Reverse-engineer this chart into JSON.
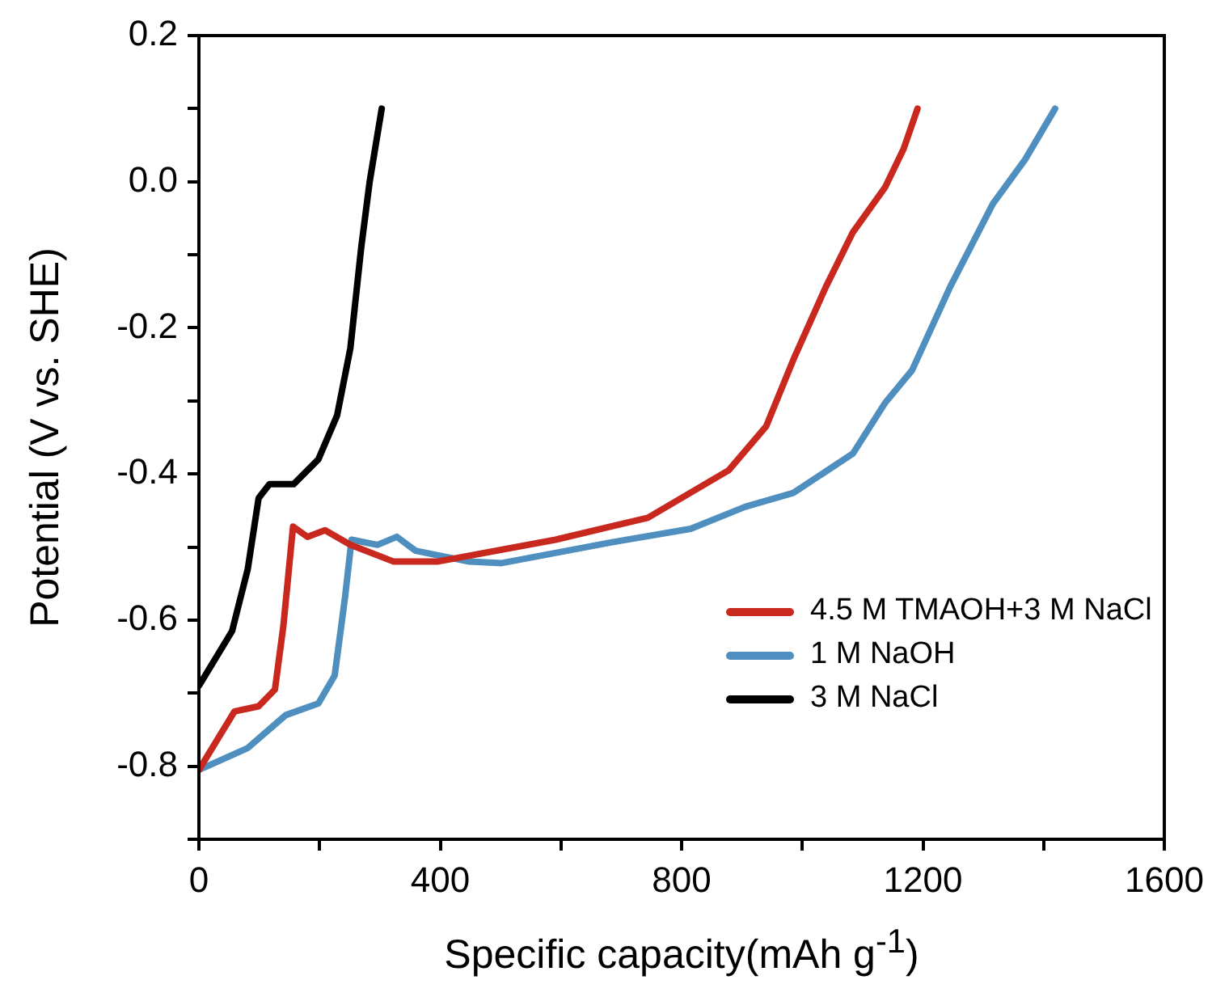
{
  "chart_data": {
    "type": "line",
    "xlabel": "Specific capacity(mAh g$^{-1}$)",
    "ylabel": "Potential (V vs. SHE)",
    "xlim": [
      0,
      1600
    ],
    "xticks": [
      0,
      {
        "value": 200,
        "label": null
      },
      400,
      {
        "value": 600,
        "label": null
      },
      800,
      {
        "value": 1000,
        "label": null
      },
      1200,
      {
        "value": 1400,
        "label": null
      },
      1600
    ],
    "ylim": [
      -0.9,
      0.2
    ],
    "yticks": [
      {
        "value": -0.9,
        "label": null
      },
      -0.8,
      {
        "value": -0.7,
        "label": null
      },
      -0.6,
      {
        "value": -0.5,
        "label": null
      },
      -0.4,
      {
        "value": -0.3,
        "label": null
      },
      -0.2,
      {
        "value": -0.1,
        "label": null
      },
      {
        "value": 0,
        "label": "0.0"
      },
      {
        "value": 0.1,
        "label": null
      },
      0.2
    ],
    "legend": "right",
    "grid": false,
    "marker": "none",
    "line_style": "solid",
    "series": [
      {
        "name": "4.5 M TMAOH+3 M NaCl",
        "color": "#c8281e",
        "x": [
          0,
          59,
          99,
          126,
          140,
          156,
          180,
          209,
          251,
          323,
          395,
          591,
          744,
          878,
          940,
          985,
          1039,
          1084,
          1137,
          1168,
          1191
        ],
        "values": [
          -0.805,
          -0.725,
          -0.718,
          -0.695,
          -0.608,
          -0.472,
          -0.486,
          -0.477,
          -0.497,
          -0.52,
          -0.52,
          -0.49,
          -0.46,
          -0.395,
          -0.335,
          -0.244,
          -0.144,
          -0.069,
          -0.008,
          0.045,
          0.1
        ]
      },
      {
        "name": "1 M NaOH",
        "color": "#4f8fbf",
        "x": [
          0,
          81,
          144,
          198,
          225,
          242,
          253,
          296,
          328,
          359,
          448,
          502,
          681,
          815,
          905,
          985,
          1084,
          1137,
          1182,
          1245,
          1316,
          1369,
          1419
        ],
        "values": [
          -0.805,
          -0.775,
          -0.73,
          -0.714,
          -0.676,
          -0.57,
          -0.49,
          -0.497,
          -0.486,
          -0.505,
          -0.52,
          -0.522,
          -0.494,
          -0.475,
          -0.445,
          -0.426,
          -0.372,
          -0.303,
          -0.258,
          -0.144,
          -0.03,
          0.03,
          0.1
        ]
      },
      {
        "name": "3 M NaCl",
        "color": "#000000",
        "x": [
          0,
          55,
          81,
          99,
          117,
          157,
          198,
          229,
          251,
          269,
          283,
          303
        ],
        "values": [
          -0.69,
          -0.615,
          -0.53,
          -0.433,
          -0.414,
          -0.414,
          -0.38,
          -0.32,
          -0.228,
          -0.09,
          0.0,
          0.1
        ]
      }
    ]
  }
}
